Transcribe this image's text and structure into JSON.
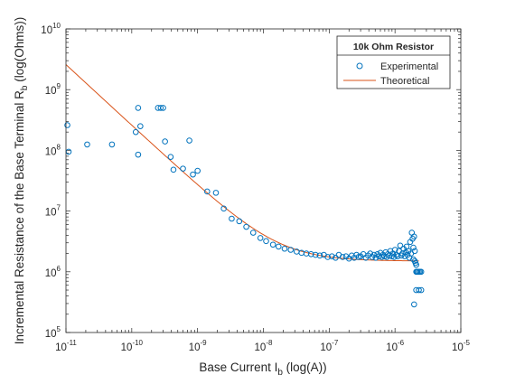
{
  "chart_data": {
    "type": "scatter",
    "xlabel": "Base Current I_b (log(A))",
    "ylabel": "Incremental Resistance of the Base Terminal R_b (log(Ohms))",
    "xscale": "log",
    "yscale": "log",
    "xlim": [
      1e-11,
      1e-05
    ],
    "ylim": [
      100000.0,
      10000000000.0
    ],
    "x_ticks": [
      1e-11,
      1e-10,
      1e-09,
      1e-08,
      1e-07,
      1e-06,
      1e-05
    ],
    "y_ticks": [
      100000.0,
      1000000.0,
      10000000.0,
      100000000.0,
      1000000000.0,
      10000000000.0
    ],
    "x_tick_labels": [
      {
        "base": "10",
        "exp": "-11"
      },
      {
        "base": "10",
        "exp": "-10"
      },
      {
        "base": "10",
        "exp": "-9"
      },
      {
        "base": "10",
        "exp": "-8"
      },
      {
        "base": "10",
        "exp": "-7"
      },
      {
        "base": "10",
        "exp": "-6"
      },
      {
        "base": "10",
        "exp": "-5"
      }
    ],
    "y_tick_labels": [
      {
        "base": "10",
        "exp": "5"
      },
      {
        "base": "10",
        "exp": "6"
      },
      {
        "base": "10",
        "exp": "7"
      },
      {
        "base": "10",
        "exp": "8"
      },
      {
        "base": "10",
        "exp": "9"
      },
      {
        "base": "10",
        "exp": "10"
      }
    ],
    "grid": false,
    "legend": {
      "title": "10k Ohm Resistor",
      "position": "top-right",
      "entries": [
        {
          "label": "Experimental",
          "marker": "circle",
          "color": "#0072BD"
        },
        {
          "label": "Theoretical",
          "marker": "line",
          "color": "#D95319"
        }
      ]
    },
    "series": [
      {
        "name": "Experimental",
        "style": "marker",
        "color": "#0072BD",
        "points": [
          [
            1.05e-11,
            260000000.0
          ],
          [
            1.1e-11,
            95000000.0
          ],
          [
            2.1e-11,
            125000000.0
          ],
          [
            5e-11,
            125000000.0
          ],
          [
            1.15e-10,
            200000000.0
          ],
          [
            1.25e-10,
            500000000.0
          ],
          [
            1.25e-10,
            85000000.0
          ],
          [
            1.35e-10,
            250000000.0
          ],
          [
            2.5e-10,
            500000000.0
          ],
          [
            2.75e-10,
            500000000.0
          ],
          [
            3e-10,
            500000000.0
          ],
          [
            3.2e-10,
            140000000.0
          ],
          [
            3.9e-10,
            78000000.0
          ],
          [
            4.3e-10,
            48000000.0
          ],
          [
            6e-10,
            50000000.0
          ],
          [
            7.5e-10,
            145000000.0
          ],
          [
            8.5e-10,
            40000000.0
          ],
          [
            1e-09,
            46000000.0
          ],
          [
            1.4e-09,
            21000000.0
          ],
          [
            1.9e-09,
            20000000.0
          ],
          [
            2.5e-09,
            11000000.0
          ],
          [
            3.3e-09,
            7500000.0
          ],
          [
            4.3e-09,
            6800000.0
          ],
          [
            5.5e-09,
            5500000.0
          ],
          [
            7e-09,
            4400000.0
          ],
          [
            9e-09,
            3600000.0
          ],
          [
            1.1e-08,
            3200000.0
          ],
          [
            1.4e-08,
            2800000.0
          ],
          [
            1.7e-08,
            2600000.0
          ],
          [
            2.1e-08,
            2400000.0
          ],
          [
            2.6e-08,
            2300000.0
          ],
          [
            3.2e-08,
            2150000.0
          ],
          [
            3.8e-08,
            2050000.0
          ],
          [
            4.5e-08,
            2000000.0
          ],
          [
            5.3e-08,
            1950000.0
          ],
          [
            6.2e-08,
            1900000.0
          ],
          [
            7.2e-08,
            1850000.0
          ],
          [
            8.3e-08,
            1900000.0
          ],
          [
            9.5e-08,
            1750000.0
          ],
          [
            1.1e-07,
            1800000.0
          ],
          [
            1.25e-07,
            1700000.0
          ],
          [
            1.4e-07,
            1900000.0
          ],
          [
            1.6e-07,
            1750000.0
          ],
          [
            1.8e-07,
            1800000.0
          ],
          [
            2e-07,
            1650000.0
          ],
          [
            2.2e-07,
            1850000.0
          ],
          [
            2.4e-07,
            1700000.0
          ],
          [
            2.6e-07,
            1900000.0
          ],
          [
            2.8e-07,
            1750000.0
          ],
          [
            3e-07,
            1800000.0
          ],
          [
            3.3e-07,
            1950000.0
          ],
          [
            3.6e-07,
            1700000.0
          ],
          [
            3.9e-07,
            1850000.0
          ],
          [
            4.2e-07,
            2000000.0
          ],
          [
            4.5e-07,
            1750000.0
          ],
          [
            4.8e-07,
            1900000.0
          ],
          [
            5.1e-07,
            1700000.0
          ],
          [
            5.4e-07,
            1950000.0
          ],
          [
            5.7e-07,
            1800000.0
          ],
          [
            6e-07,
            2050000.0
          ],
          [
            6.3e-07,
            1750000.0
          ],
          [
            6.6e-07,
            1900000.0
          ],
          [
            6.9e-07,
            1800000.0
          ],
          [
            7.2e-07,
            2100000.0
          ],
          [
            7.5e-07,
            1750000.0
          ],
          [
            7.8e-07,
            1950000.0
          ],
          [
            8.1e-07,
            1850000.0
          ],
          [
            8.5e-07,
            2200000.0
          ],
          [
            8.9e-07,
            1800000.0
          ],
          [
            9.3e-07,
            2000000.0
          ],
          [
            9.7e-07,
            1750000.0
          ],
          [
            1e-06,
            2300000.0
          ],
          [
            1.05e-06,
            1900000.0
          ],
          [
            1.1e-06,
            1800000.0
          ],
          [
            1.15e-06,
            2200000.0
          ],
          [
            1.2e-06,
            2700000.0
          ],
          [
            1.25e-06,
            1850000.0
          ],
          [
            1.3e-06,
            2000000.0
          ],
          [
            1.35e-06,
            2400000.0
          ],
          [
            1.4e-06,
            1800000.0
          ],
          [
            1.45e-06,
            2100000.0
          ],
          [
            1.5e-06,
            2600000.0
          ],
          [
            1.55e-06,
            1900000.0
          ],
          [
            1.6e-06,
            2200000.0
          ],
          [
            1.65e-06,
            1700000.0
          ],
          [
            1.7e-06,
            3100000.0
          ],
          [
            1.75e-06,
            2000000.0
          ],
          [
            1.8e-06,
            4400000.0
          ],
          [
            1.85e-06,
            3500000.0
          ],
          [
            1.9e-06,
            2500000.0
          ],
          [
            1.9e-06,
            1600000.0
          ],
          [
            1.95e-06,
            3800000.0
          ],
          [
            2e-06,
            2200000.0
          ],
          [
            2e-06,
            1500000.0
          ],
          [
            2.05e-06,
            1400000.0
          ],
          [
            2.1e-06,
            1000000.0
          ],
          [
            2.1e-06,
            1300000.0
          ],
          [
            2.15e-06,
            1000000.0
          ],
          [
            2.2e-06,
            1000000.0
          ],
          [
            2.3e-06,
            1000000.0
          ],
          [
            2.4e-06,
            1000000.0
          ],
          [
            2.5e-06,
            1000000.0
          ],
          [
            2.1e-06,
            500000.0
          ],
          [
            2.3e-06,
            500000.0
          ],
          [
            2.5e-06,
            500000.0
          ],
          [
            1.95e-06,
            290000.0
          ]
        ]
      },
      {
        "name": "Theoretical",
        "style": "line",
        "color": "#D95319",
        "equation": "R_b = 0.0258/I_b + 1.5e6",
        "x_range": [
          1e-11,
          2.3e-06
        ]
      }
    ]
  }
}
